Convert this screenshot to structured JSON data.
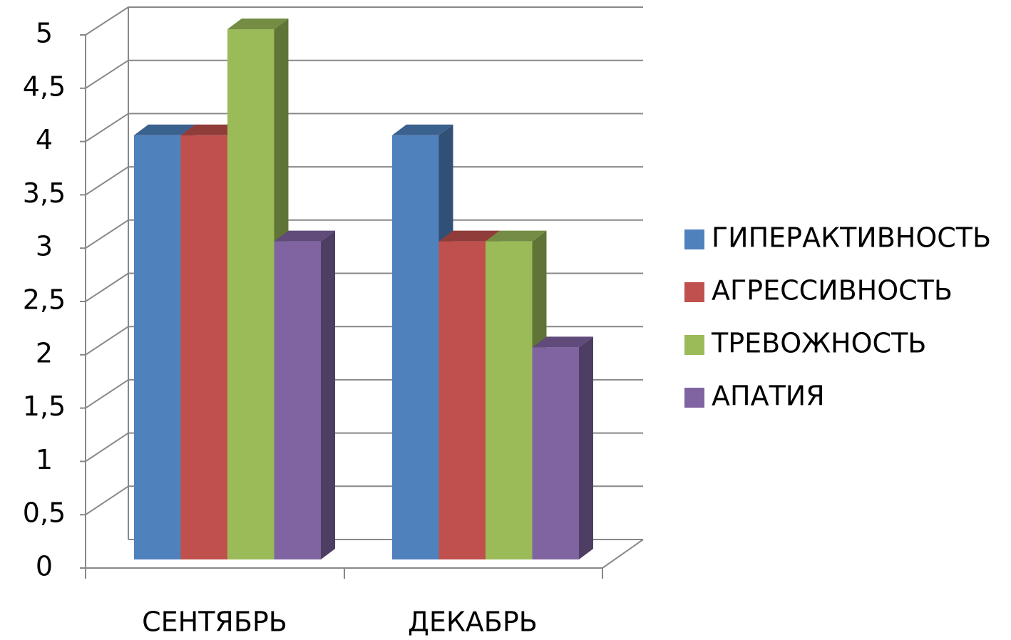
{
  "chart_data": {
    "type": "bar3d",
    "categories": [
      "СЕНТЯБРЬ",
      "ДЕКАБРЬ"
    ],
    "series": [
      {
        "name": "ГИПЕРАКТИВНОСТЬ",
        "color": "#4f81bd",
        "values": [
          4,
          4
        ]
      },
      {
        "name": "АГРЕССИВНОСТЬ",
        "color": "#c0504d",
        "values": [
          4,
          3
        ]
      },
      {
        "name": "ТРЕВОЖНОСТЬ",
        "color": "#9bbb59",
        "values": [
          5,
          3
        ]
      },
      {
        "name": "АПАТИЯ",
        "color": "#8064a2",
        "values": [
          3,
          2
        ]
      }
    ],
    "ylim": [
      0,
      5
    ],
    "yticks": [
      0,
      {
        "value": 0.5,
        "label": "0,5"
      },
      1,
      {
        "value": 1.5,
        "label": "1,5"
      },
      2,
      {
        "value": 2.5,
        "label": "2,5"
      },
      3,
      {
        "value": 3.5,
        "label": "3,5"
      },
      4,
      {
        "value": 4.5,
        "label": "4,5"
      },
      5
    ],
    "grid": true,
    "legend": "right"
  }
}
